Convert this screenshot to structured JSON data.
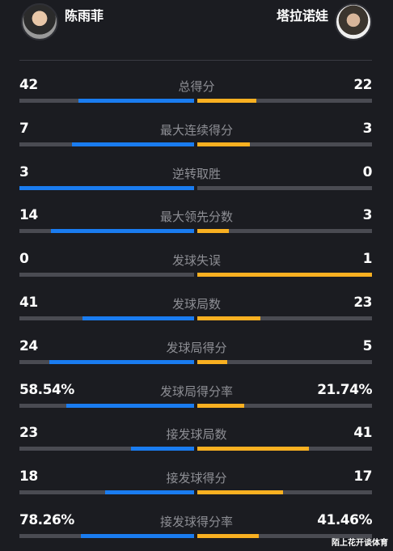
{
  "players": {
    "left": {
      "name": "陈雨菲"
    },
    "right": {
      "name": "塔拉诺娃"
    }
  },
  "colors": {
    "left_bar": "#1a7cf0",
    "right_bar": "#f9b021",
    "track": "#4a4b52",
    "background": "#1b1c21"
  },
  "stats": [
    {
      "label": "总得分",
      "left": "42",
      "right": "22",
      "left_frac": 0.66,
      "right_frac": 0.34
    },
    {
      "label": "最大连续得分",
      "left": "7",
      "right": "3",
      "left_frac": 0.7,
      "right_frac": 0.3
    },
    {
      "label": "逆转取胜",
      "left": "3",
      "right": "0",
      "left_frac": 1.0,
      "right_frac": 0.0
    },
    {
      "label": "最大领先分数",
      "left": "14",
      "right": "3",
      "left_frac": 0.82,
      "right_frac": 0.18
    },
    {
      "label": "发球失误",
      "left": "0",
      "right": "1",
      "left_frac": 0.0,
      "right_frac": 1.0
    },
    {
      "label": "发球局数",
      "left": "41",
      "right": "23",
      "left_frac": 0.64,
      "right_frac": 0.36
    },
    {
      "label": "发球局得分",
      "left": "24",
      "right": "5",
      "left_frac": 0.83,
      "right_frac": 0.17
    },
    {
      "label": "发球局得分率",
      "left": "58.54%",
      "right": "21.74%",
      "left_frac": 0.73,
      "right_frac": 0.27
    },
    {
      "label": "接发球局数",
      "left": "23",
      "right": "41",
      "left_frac": 0.36,
      "right_frac": 0.64
    },
    {
      "label": "接发球得分",
      "left": "18",
      "right": "17",
      "left_frac": 0.51,
      "right_frac": 0.49
    },
    {
      "label": "接发球得分率",
      "left": "78.26%",
      "right": "41.46%",
      "left_frac": 0.65,
      "right_frac": 0.35
    }
  ],
  "watermark": "陌上花开谈体育"
}
